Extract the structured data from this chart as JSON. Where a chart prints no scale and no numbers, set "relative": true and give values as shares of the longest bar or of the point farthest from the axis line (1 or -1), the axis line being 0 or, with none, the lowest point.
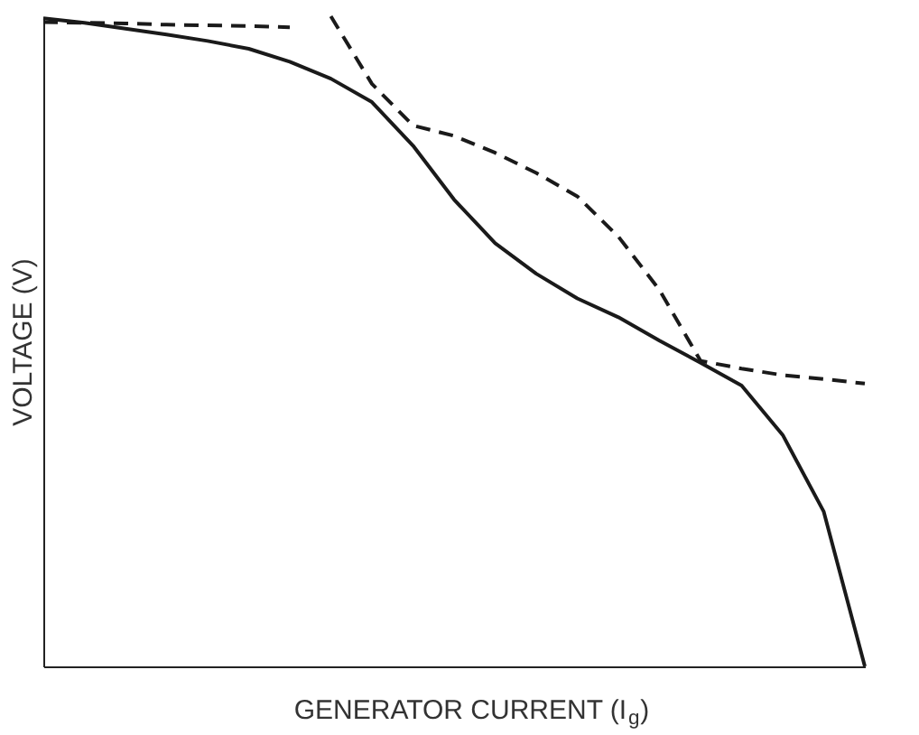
{
  "chart_data": {
    "type": "line",
    "relative": true,
    "xlabel": "GENERATOR CURRENT (I$_{g}$)",
    "ylabel": "VOLTAGE (V)",
    "tick_labels": false,
    "grid": false,
    "legend": false,
    "marker": "none",
    "categories": [
      null,
      null,
      null,
      null,
      null,
      null,
      null,
      null,
      null,
      null,
      null,
      null,
      null,
      null,
      null,
      null,
      null,
      null,
      null,
      null,
      null
    ],
    "series": [
      {
        "color": "#1a1a1a",
        "line_style": "solid",
        "values": [
          0.997,
          0.99,
          0.981,
          0.972,
          0.962,
          0.95,
          0.93,
          0.904,
          0.868,
          0.801,
          0.718,
          0.651,
          0.604,
          0.566,
          0.537,
          0.501,
          0.467,
          0.432,
          0.356,
          0.238,
          0
        ]
      },
      {
        "color": "#1a1a1a",
        "line_style": "dashed",
        "values": [
          0.991,
          0.99,
          0.989,
          0.987,
          0.986,
          0.985,
          0.983,
          null,
          null,
          null,
          null,
          null,
          null,
          null,
          null,
          null,
          null,
          null,
          null,
          null,
          null
        ]
      },
      {
        "color": "#1a1a1a",
        "line_style": "dashed",
        "values": [
          null,
          null,
          null,
          null,
          null,
          null,
          null,
          1.0,
          0.896,
          0.832,
          0.816,
          0.79,
          0.759,
          0.723,
          0.661,
          0.579,
          0.47,
          0.458,
          0.448,
          0.442,
          0.435
        ]
      }
    ]
  }
}
